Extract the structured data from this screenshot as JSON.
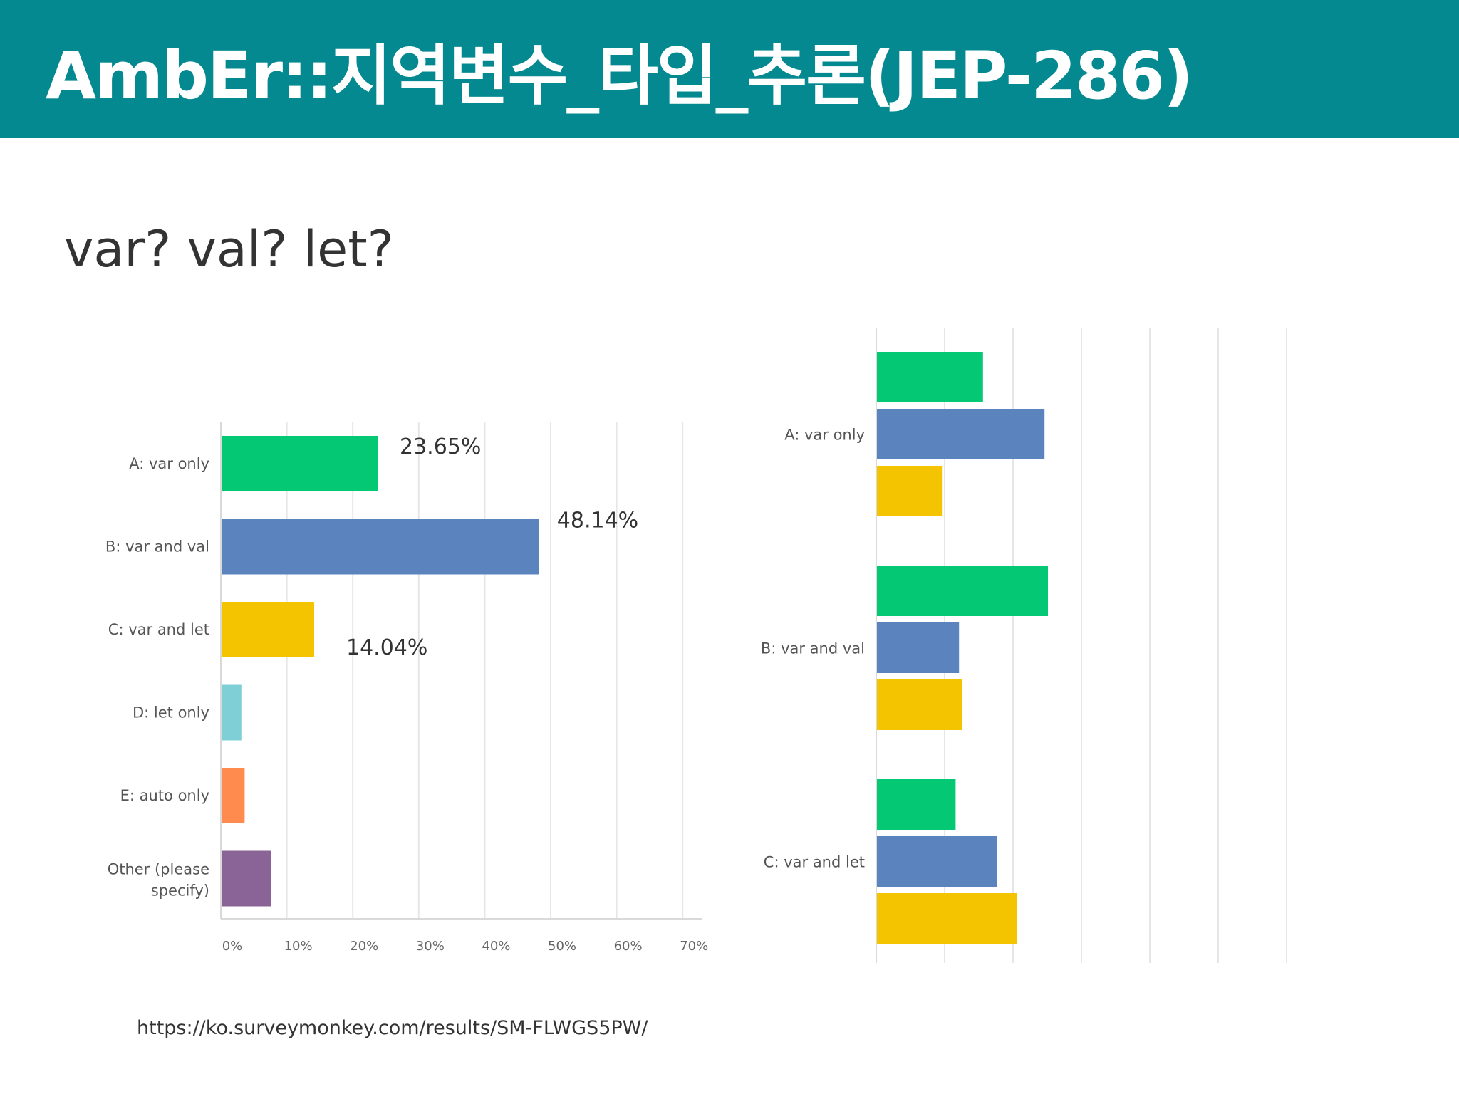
{
  "header": {
    "title": "AmbEr::지역변수_타입_추론(JEP-286)"
  },
  "subtitle": "var? val? let?",
  "source": "https://ko.surveymonkey.com/results/SM-FLWGS5PW/",
  "colors": {
    "header_bg": "#058990",
    "green": "#05C875",
    "blue": "#5B84BE",
    "yellow": "#F5C400",
    "teal": "#7ED0D6",
    "orange": "#FF8B4F",
    "purple": "#8A6496"
  },
  "chart_data": [
    {
      "type": "bar",
      "orientation": "horizontal",
      "categories": [
        "A: var only",
        "B: var and val",
        "C: var and let",
        "D: let only",
        "E: auto only",
        "Other (please specify)"
      ],
      "values": [
        23.65,
        48.14,
        14.04,
        3.0,
        3.5,
        7.5
      ],
      "value_labels": [
        "23.65%",
        "48.14%",
        "14.04%",
        "",
        "",
        ""
      ],
      "bar_colors": [
        "#05C875",
        "#5B84BE",
        "#F5C400",
        "#7ED0D6",
        "#FF8B4F",
        "#8A6496"
      ],
      "xticks": [
        "0%",
        "10%",
        "20%",
        "30%",
        "40%",
        "50%",
        "60%",
        "70%"
      ],
      "xlim": [
        0,
        73
      ],
      "grid": true
    },
    {
      "type": "bar",
      "orientation": "horizontal",
      "categories": [
        "A: var only",
        "B: var and val",
        "C: var and let"
      ],
      "series": [
        {
          "color": "#05C875",
          "values": [
            31,
            50,
            23
          ]
        },
        {
          "color": "#5B84BE",
          "values": [
            49,
            24,
            35
          ]
        },
        {
          "color": "#F5C400",
          "values": [
            19,
            25,
            41
          ]
        }
      ],
      "xlim": [
        0,
        60
      ],
      "grid": true
    }
  ]
}
